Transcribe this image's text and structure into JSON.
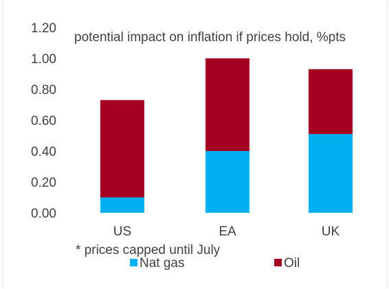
{
  "chart_data": {
    "type": "bar",
    "stacked": true,
    "title": "potential impact on inflation if prices hold, %pts",
    "categories": [
      "US",
      "EA",
      "UK"
    ],
    "series": [
      {
        "name": "Nat gas",
        "color": "#00b0f0",
        "values": [
          0.1,
          0.4,
          0.51
        ]
      },
      {
        "name": "Oil",
        "color": "#a50021",
        "values": [
          0.63,
          0.6,
          0.42
        ]
      }
    ],
    "ylim": [
      0,
      1.2
    ],
    "yticks": [
      "0.00",
      "0.20",
      "0.40",
      "0.60",
      "0.80",
      "1.00",
      "1.20"
    ],
    "xlabel": "",
    "ylabel": "",
    "grid": false,
    "legend": "bottom",
    "annotation": "* prices capped until July"
  }
}
